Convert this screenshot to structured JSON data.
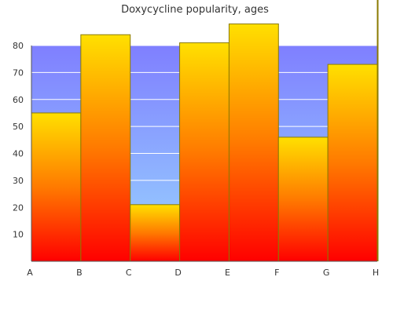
{
  "chart_data": {
    "type": "area",
    "title": "Doxycycline popularity, ages",
    "xlabel": "",
    "ylabel": "",
    "categories": [
      "A",
      "B",
      "C",
      "D",
      "E",
      "F",
      "G",
      "H"
    ],
    "values": [
      55,
      84,
      21,
      81,
      88,
      46,
      73,
      100
    ],
    "ylim": [
      0,
      80
    ],
    "yticks": [
      10,
      20,
      30,
      40,
      50,
      60,
      70,
      80
    ],
    "grid": true,
    "legend": "none",
    "colors": {
      "area_top": "#ffe000",
      "area_mid": "#ff7a00",
      "area_bottom": "#ff0000",
      "bg_top": "#7f7fff",
      "bg_bottom": "#99d6ff",
      "stroke": "#8a7a00",
      "axis": "#555555",
      "grid": "#ffffff",
      "text": "#333333"
    }
  }
}
